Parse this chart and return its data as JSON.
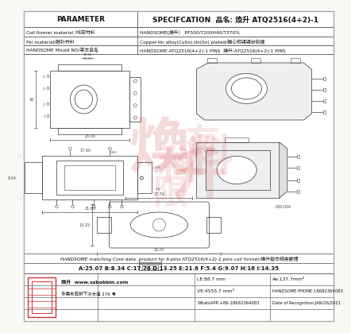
{
  "title_product": "煥升 ATQ2516(4+2)-1",
  "param_header": "PARAMETER",
  "spec_header": "SPECIFCATION",
  "row1_param": "Coil former material /线架材料",
  "row1_spec": "HANDSOME(煥升） PF500/T200H40/T370%",
  "row2_param": "Pin material/脚针材料",
  "row2_spec": "Copper-tin alloy(CuSn),tin(Sn) plated/磷心铜锡锡分别镀",
  "row3_param": "HANDSOME Mould NO/英文品名",
  "row3_spec": "HANDSOME-ATQ2516(4+2)-1 PINS  煥升-ATQ2516(4+2)-1 PINS",
  "dimensions_text": "A:25.07 B:8.34 C:17.76 D:13.25 E:21.6 F:5.4 G:9.07 H:16 I:14.35",
  "footer_note": "HANDSOME matching Core data  product for 6-pins ATQ2516(4+2)-1 pins coil former/煥升磁芯相夹数据",
  "company_name": "煥升  www.szbobbin.com",
  "address": "东莞市石排下沙大道 276 号",
  "le_value": "LE:88.7 mm",
  "ae_value": "Ae:137.7mm²",
  "ve_value": "VE:4555.7 mm³",
  "phone": "HANDSOME PHONE:18682364083",
  "whatsapp": "WhatsAPP:+86-18682364083",
  "date": "Date of Recognition:JAN/26/2021",
  "bg_color": "#f8f8f5",
  "table_line_color": "#666666",
  "drawing_color": "#444444",
  "text_color": "#111111",
  "red_watermark": "#cc3333",
  "border_color": "#aaaaaa"
}
